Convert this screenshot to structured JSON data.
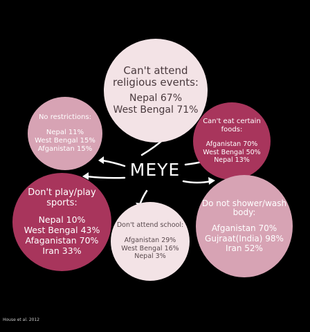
{
  "center": {
    "label": "MEYE"
  },
  "circles": {
    "religious": {
      "title": "Can't attend religious events:",
      "rows": [
        "Nepal 67%",
        "West Bengal 71%"
      ]
    },
    "no_restrictions": {
      "title": "No restrictions:",
      "rows": [
        "Nepal 11%",
        "West Bengal 15%",
        "Afganistan 15%"
      ]
    },
    "foods": {
      "title": "Can't eat certain foods:",
      "rows": [
        "Afganistan 70%",
        "West Bengal 50%",
        "Nepal 13%"
      ]
    },
    "sports": {
      "title": "Don't play/play sports:",
      "rows": [
        "Nepal 10%",
        "West Bengal 43%",
        "Afaganistan 70%",
        "Iran 33%"
      ]
    },
    "shower": {
      "title": "Do not shower/wash body:",
      "rows": [
        "Afganistan 70%",
        "Gujraat(India) 98%",
        "Iran 52%"
      ]
    },
    "school": {
      "title": "Don't attend school:",
      "rows": [
        "Afganistan 29%",
        "West Bengal 16%",
        "Nepal 3%"
      ]
    }
  },
  "citation": "House et al. 2012",
  "colors": {
    "background": "#000000",
    "dark_magenta": "#a8355c",
    "light_pink": "#d7a3b4",
    "pale_pink": "#f3e3e6"
  }
}
